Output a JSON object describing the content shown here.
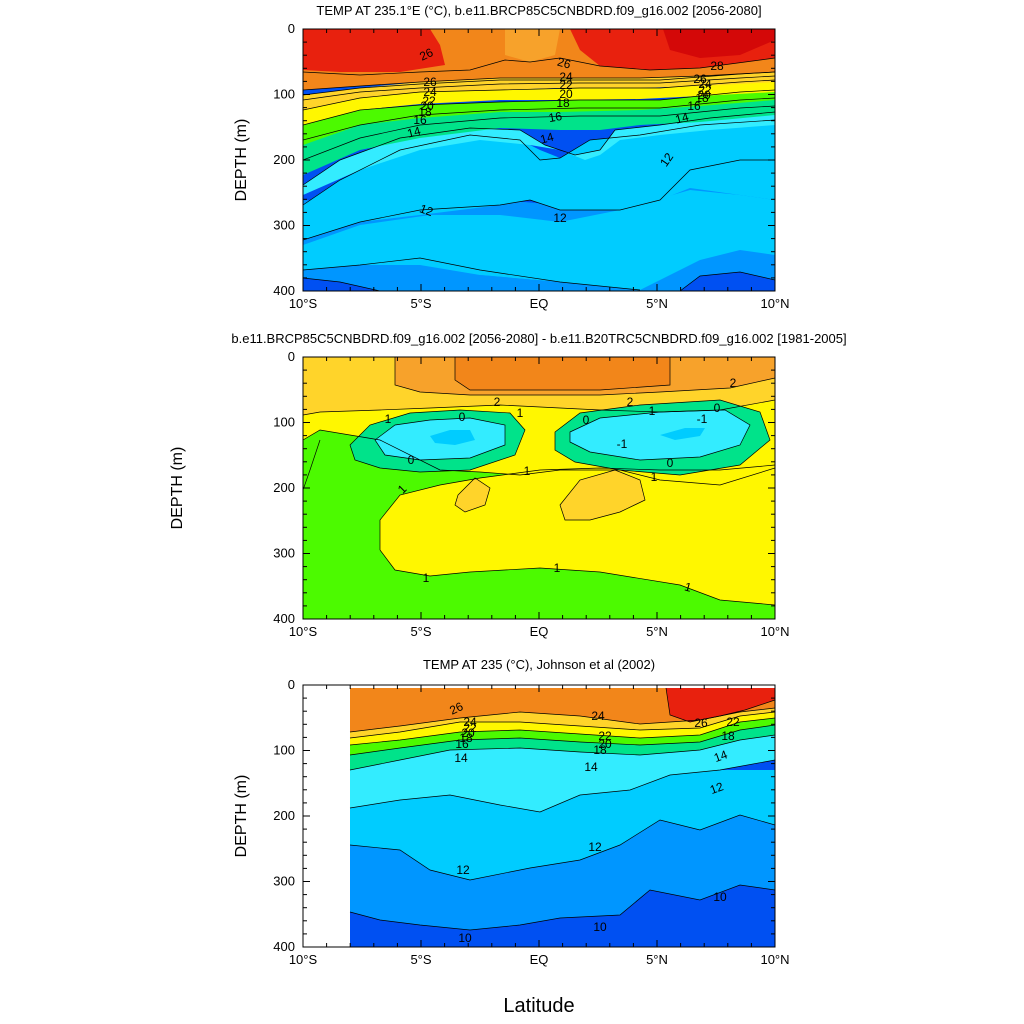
{
  "x_label": "Latitude",
  "colors": {
    "red": "#e8210e",
    "darkred": "#d40808",
    "orange": "#f2861a",
    "lightorange": "#f7a22b",
    "yellow": "#fff700",
    "gold": "#ffd42a",
    "green": "#4cfa00",
    "teal": "#00e38a",
    "cyan": "#33ecff",
    "skyblue": "#00ccff",
    "blue": "#0096ff",
    "deepblue": "#0050f2"
  },
  "chart_data": [
    {
      "type": "heatmap",
      "title": "TEMP AT 235.1°E (°C), b.e11.BRCP85C5CNBDRD.f09_g16.002 [2056-2080]",
      "ylabel": "DEPTH (m)",
      "x_ticks": [
        "10°S",
        "5°S",
        "EQ",
        "5°N",
        "10°N"
      ],
      "y_ticks": [
        "0",
        "100",
        "200",
        "300",
        "400"
      ],
      "xlim": [
        -10,
        10
      ],
      "ylim": [
        0,
        400
      ],
      "contour_labels": [
        "26",
        "26",
        "24",
        "22",
        "20",
        "18",
        "16",
        "14",
        "26",
        "24",
        "22",
        "20",
        "18",
        "16",
        "14",
        "12",
        "12",
        "12",
        "26",
        "28",
        "24",
        "22",
        "20",
        "18",
        "16",
        "14"
      ]
    },
    {
      "type": "heatmap",
      "title": "b.e11.BRCP85C5CNBDRD.f09_g16.002 [2056-2080] - b.e11.B20TRC5CNBDRD.f09_g16.002 [1981-2005]",
      "ylabel": "DEPTH (m)",
      "x_ticks": [
        "10°S",
        "5°S",
        "EQ",
        "5°N",
        "10°N"
      ],
      "y_ticks": [
        "0",
        "100",
        "200",
        "300",
        "400"
      ],
      "xlim": [
        -10,
        10
      ],
      "ylim": [
        0,
        400
      ],
      "contour_labels": [
        "2",
        "2",
        "2",
        "1",
        "0",
        "1",
        "0",
        "1",
        "0",
        "1",
        "-1",
        "-1",
        "0",
        "1",
        "1",
        "1",
        "1",
        "1"
      ]
    },
    {
      "type": "heatmap",
      "title": "TEMP AT 235 (°C), Johnson et al (2002)",
      "ylabel": "DEPTH (m)",
      "x_ticks": [
        "10°S",
        "5°S",
        "EQ",
        "5°N",
        "10°N"
      ],
      "y_ticks": [
        "0",
        "100",
        "200",
        "300",
        "400"
      ],
      "xlim": [
        -10,
        10
      ],
      "ylim": [
        0,
        400
      ],
      "contour_labels": [
        "26",
        "24",
        "22",
        "20",
        "18",
        "16",
        "14",
        "24",
        "22",
        "20",
        "18",
        "14",
        "26",
        "22",
        "18",
        "14",
        "12",
        "12",
        "12",
        "10",
        "10",
        "10"
      ]
    }
  ]
}
